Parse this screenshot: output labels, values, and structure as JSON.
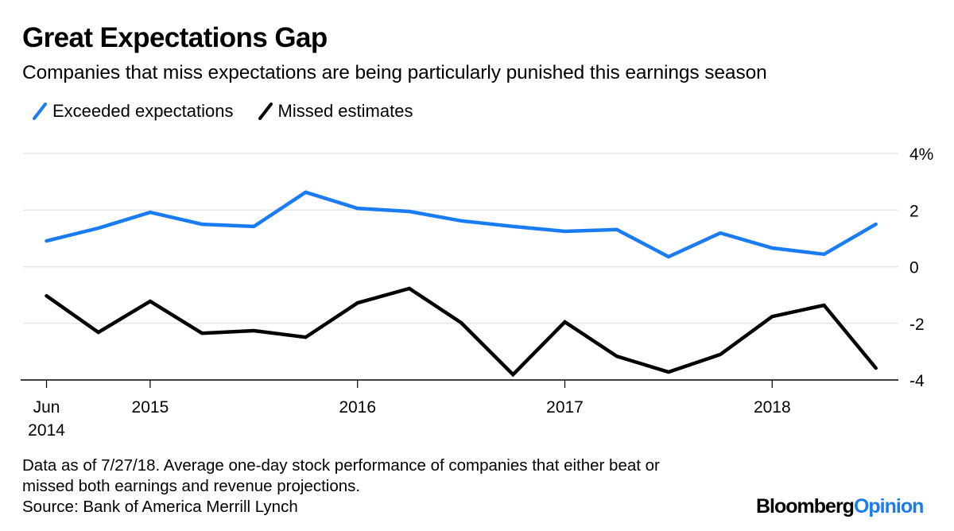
{
  "header": {
    "title": "Great Expectations Gap",
    "subtitle": "Companies that miss expectations are being particularly punished this earnings season"
  },
  "legend": [
    {
      "label": "Exceeded expectations",
      "color": "#1a7cf2"
    },
    {
      "label": "Missed estimates",
      "color": "#000000"
    }
  ],
  "footer": {
    "note_line1": "Data as of 7/27/18. Average one-day stock performance of companies that either beat or",
    "note_line2": "missed both earnings and revenue projections.",
    "source": "Source: Bank of America Merrill Lynch"
  },
  "branding": {
    "logo_part1": "Bloomberg",
    "logo_part2": "Opinion"
  },
  "chart_data": {
    "type": "line",
    "title": "Great Expectations Gap",
    "subtitle": "Companies that miss expectations are being particularly punished this earnings season",
    "xlabel": "",
    "ylabel": "",
    "x": [
      "2014-06",
      "2014-09",
      "2014-12",
      "2015-03",
      "2015-06",
      "2015-09",
      "2015-12",
      "2016-03",
      "2016-06",
      "2016-09",
      "2016-12",
      "2017-03",
      "2017-06",
      "2017-09",
      "2017-12",
      "2018-03",
      "2018-06"
    ],
    "x_ticks": [
      {
        "label": "Jun",
        "label2": "2014",
        "at": 0
      },
      {
        "label": "2015",
        "at": 2.0
      },
      {
        "label": "2016",
        "at": 6.0
      },
      {
        "label": "2017",
        "at": 10.0
      },
      {
        "label": "2018",
        "at": 14.0
      }
    ],
    "series": [
      {
        "name": "Exceeded expectations",
        "color": "#1a7cf2",
        "values": [
          0.91,
          1.36,
          1.92,
          1.5,
          1.42,
          2.63,
          2.06,
          1.95,
          1.62,
          1.42,
          1.25,
          1.31,
          0.35,
          1.19,
          0.66,
          0.44,
          1.5
        ]
      },
      {
        "name": "Missed estimates",
        "color": "#000000",
        "values": [
          -1.03,
          -2.32,
          -1.22,
          -2.35,
          -2.26,
          -2.49,
          -1.28,
          -0.77,
          -1.98,
          -3.81,
          -1.95,
          -3.16,
          -3.72,
          -3.1,
          -1.76,
          -1.36,
          -3.58
        ]
      }
    ],
    "ylim": [
      -4,
      4
    ],
    "y_ticks": [
      {
        "value": 4,
        "label": "4%"
      },
      {
        "value": 2,
        "label": "2"
      },
      {
        "value": 0,
        "label": "0"
      },
      {
        "value": -2,
        "label": "-2"
      },
      {
        "value": -4,
        "label": "-4"
      }
    ],
    "y_axis_position": "right",
    "grid": true,
    "legend_position": "top-left"
  }
}
